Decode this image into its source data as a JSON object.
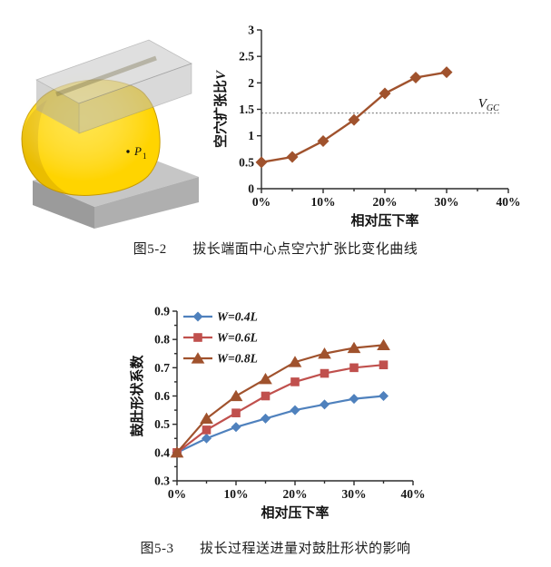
{
  "figure1": {
    "caption": {
      "number": "图5-2",
      "text": "拔长端面中心点空穴扩张比变化曲线"
    },
    "image": {
      "point_label_main": "P",
      "point_label_sub": "1",
      "workpiece_color": "#FFD400",
      "die_color": "#C6C6C6",
      "die_front_color": "#AFAFAF",
      "die_end_color": "#9B9B9B"
    }
  },
  "figure2": {
    "caption": {
      "number": "图5-3",
      "text": "拔长过程送进量对鼓肚形状的影响"
    }
  },
  "chart_data": [
    {
      "type": "line",
      "title": "",
      "xlabel": "相对压下率",
      "ylabel": "空穴扩张比",
      "ylabel_italic_suffix": "V",
      "x": [
        0,
        5,
        10,
        15,
        20,
        25,
        30
      ],
      "x_format": "percent",
      "series": [
        {
          "name": "",
          "color": "#A0522D",
          "marker": "diamond",
          "values": [
            0.5,
            0.6,
            0.9,
            1.3,
            1.8,
            2.1,
            2.2
          ]
        }
      ],
      "xlim": [
        0,
        40
      ],
      "ylim": [
        0,
        3
      ],
      "xtick_major": 10,
      "xtick_minor": 5,
      "ytick_major": 0.5,
      "ytick_minor": null,
      "y_decimals": null,
      "grid": false,
      "legend": null,
      "ref_line": {
        "value": 1.43,
        "x_start": 0,
        "x_end": 38.5,
        "label_main": "V",
        "label_sub": "GC",
        "color": "#8f8f8f"
      }
    },
    {
      "type": "line",
      "title": "",
      "xlabel": "相对压下率",
      "ylabel": "鼓肚形状系数",
      "ylabel_italic_suffix": "",
      "x": [
        0,
        5,
        10,
        15,
        20,
        25,
        30,
        35
      ],
      "x_format": "percent",
      "series": [
        {
          "name": "W=0.4L",
          "color": "#4F81BD",
          "marker": "diamond",
          "values": [
            0.4,
            0.45,
            0.49,
            0.52,
            0.55,
            0.57,
            0.59,
            0.6
          ]
        },
        {
          "name": "W=0.6L",
          "color": "#C0504D",
          "marker": "square",
          "values": [
            0.4,
            0.48,
            0.54,
            0.6,
            0.65,
            0.68,
            0.7,
            0.71
          ]
        },
        {
          "name": "W=0.8L",
          "color": "#A0522D",
          "marker": "triangle",
          "values": [
            0.4,
            0.52,
            0.6,
            0.66,
            0.72,
            0.75,
            0.77,
            0.78
          ]
        }
      ],
      "xlim": [
        0,
        40
      ],
      "ylim": [
        0.3,
        0.9
      ],
      "xtick_major": 10,
      "xtick_minor": 5,
      "ytick_major": 0.1,
      "ytick_minor": 0.05,
      "y_decimals": 1,
      "grid": false,
      "legend": {
        "position": "top-left"
      },
      "ref_line": null
    }
  ]
}
